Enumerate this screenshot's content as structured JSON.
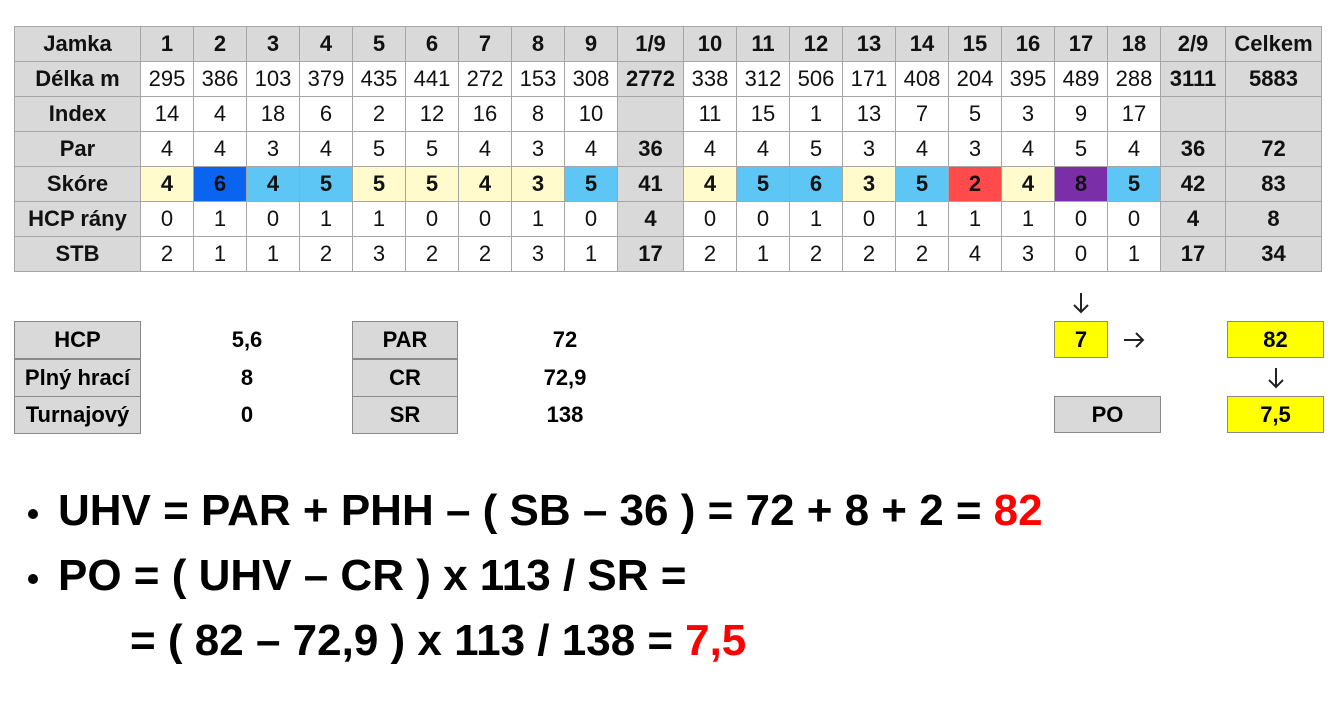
{
  "scorecard": {
    "header": [
      "Jamka",
      1,
      2,
      3,
      4,
      5,
      6,
      7,
      8,
      9,
      "1/9",
      10,
      11,
      12,
      13,
      14,
      15,
      16,
      17,
      18,
      "2/9",
      "Celkem"
    ],
    "rows": [
      {
        "label": "Délka m",
        "cells": [
          295,
          386,
          103,
          379,
          435,
          441,
          272,
          153,
          308,
          2772,
          338,
          312,
          506,
          171,
          408,
          204,
          395,
          489,
          288,
          3111,
          5883
        ]
      },
      {
        "label": "Index",
        "cells": [
          14,
          4,
          18,
          6,
          2,
          12,
          16,
          8,
          10,
          null,
          11,
          15,
          1,
          13,
          7,
          5,
          3,
          9,
          17,
          null,
          null
        ]
      },
      {
        "label": "Par",
        "cells": [
          4,
          4,
          3,
          4,
          5,
          5,
          4,
          3,
          4,
          36,
          4,
          4,
          5,
          3,
          4,
          3,
          4,
          5,
          4,
          36,
          72
        ]
      },
      {
        "label": "Skóre",
        "cells": [
          4,
          6,
          4,
          5,
          5,
          5,
          4,
          3,
          5,
          41,
          4,
          5,
          6,
          3,
          5,
          2,
          4,
          8,
          5,
          42,
          83
        ],
        "cell_colors": [
          "#fffbcc",
          "#0a64f0",
          "#5ec6f5",
          "#5ec6f5",
          "#fffbcc",
          "#fffbcc",
          "#fffbcc",
          "#fffbcc",
          "#5ec6f5",
          null,
          "#fffbcc",
          "#5ec6f5",
          "#5ec6f5",
          "#fffbcc",
          "#5ec6f5",
          "#ff4b4b",
          "#fffbcc",
          "#7a2fa8",
          "#5ec6f5",
          null,
          null
        ]
      },
      {
        "label": "HCP rány",
        "cells": [
          0,
          1,
          0,
          1,
          1,
          0,
          0,
          1,
          0,
          4,
          0,
          0,
          1,
          0,
          1,
          1,
          1,
          0,
          0,
          4,
          8
        ]
      },
      {
        "label": "STB",
        "cells": [
          2,
          1,
          1,
          2,
          3,
          2,
          2,
          3,
          1,
          17,
          2,
          1,
          2,
          2,
          2,
          4,
          3,
          0,
          1,
          17,
          34
        ]
      }
    ]
  },
  "handicap": [
    {
      "label": "HCP",
      "value": "5,6"
    },
    {
      "label": "Plný hrací",
      "value": 8
    },
    {
      "label": "Turnajový",
      "value": 0
    }
  ],
  "course": [
    {
      "label": "PAR",
      "value": 72
    },
    {
      "label": "CR",
      "value": "72,9"
    },
    {
      "label": "SR",
      "value": 138
    }
  ],
  "result": {
    "hole17_stb": 7,
    "uhv": 82,
    "po_label": "PO",
    "po": "7,5"
  },
  "formulas": {
    "result_color": "#ff0000",
    "lines": [
      {
        "text": "UHV = PAR + PHH – ( SB – 36 ) = 72 + 8 + 2 =",
        "result": "82"
      },
      {
        "text": "PO = ( UHV – CR ) x 113 / SR ="
      },
      {
        "text": "= ( 82 – 72,9 ) x 113 / 138 =",
        "result": "7,5"
      }
    ]
  }
}
